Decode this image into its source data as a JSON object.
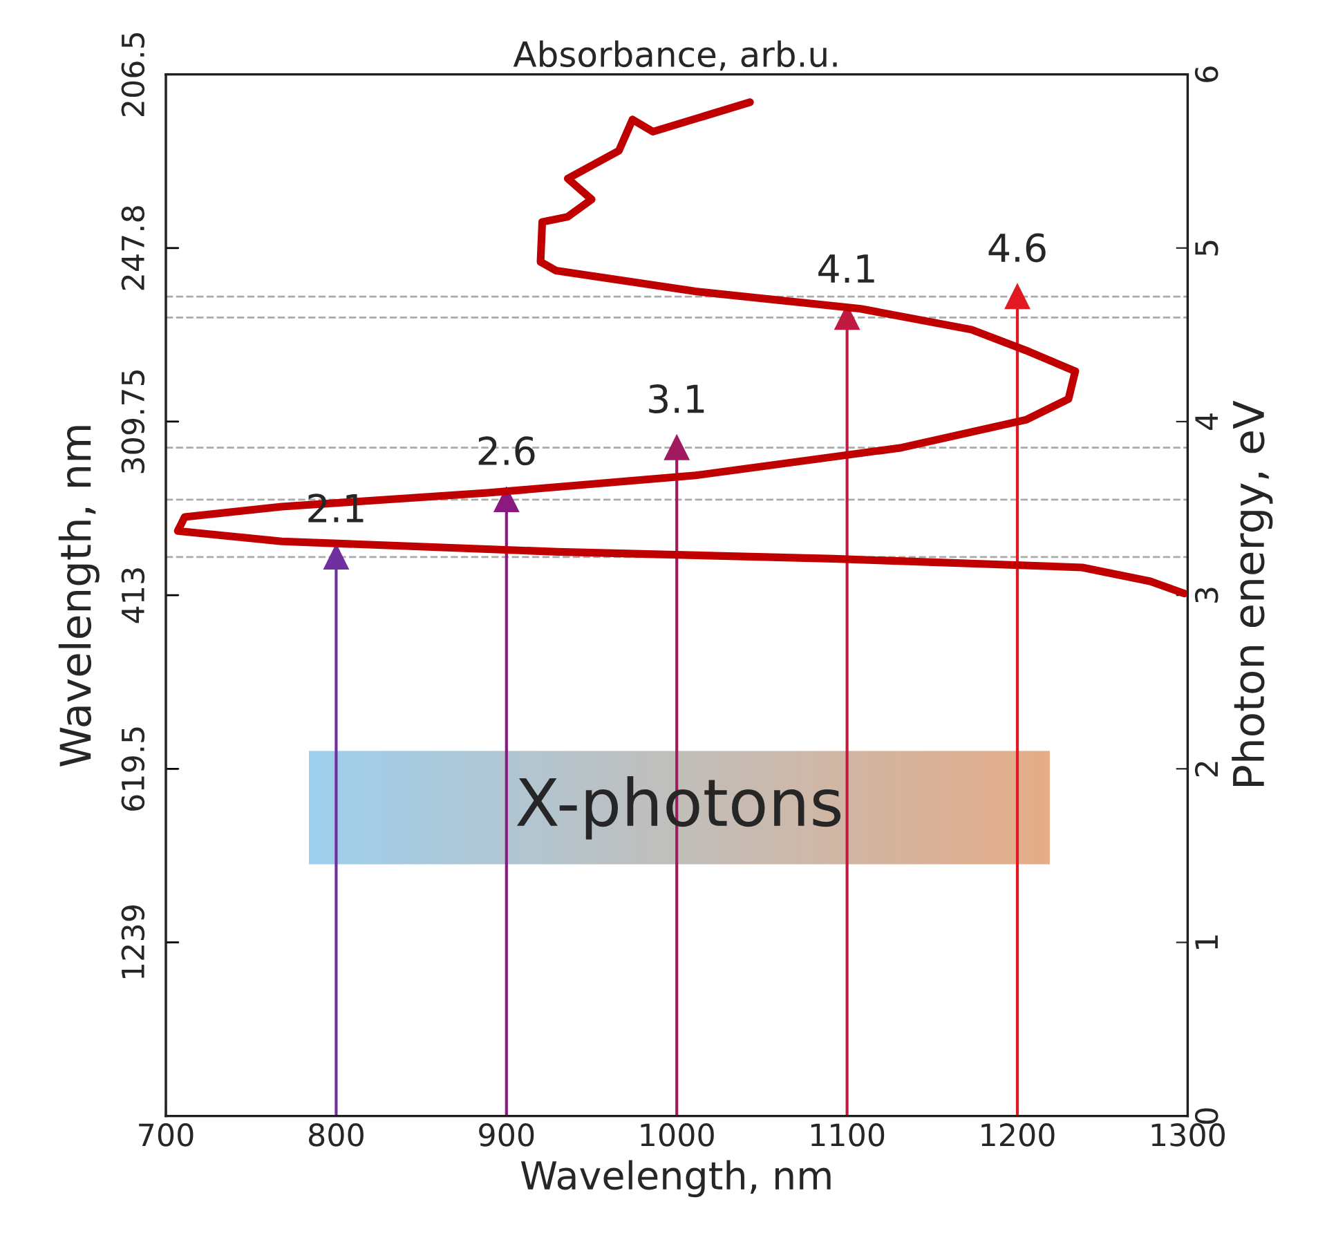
{
  "chart_data": {
    "type": "line",
    "xlabel": "Wavelength, nm",
    "ylabel": "Photon energy, eV",
    "y2label": "Wavelength, nm",
    "x2label": "Absorbance, arb.u.",
    "xlim": [
      700,
      1300
    ],
    "xticks": [
      700,
      800,
      900,
      1000,
      1100,
      1200,
      1300
    ],
    "ylim": [
      0,
      6
    ],
    "yticks": [
      0,
      1,
      2,
      3,
      4,
      5,
      6
    ],
    "grid": false,
    "legend": false,
    "bands": [
      {
        "axis": "y",
        "from": 1.45,
        "to": 2.1,
        "label": "X-photons"
      }
    ],
    "series": [
      {
        "color": "#c00000",
        "marker": "none",
        "x": [
          1043,
          986,
          974,
          966,
          936,
          950,
          936,
          921,
          920,
          929,
          1011,
          1108,
          1173,
          1205,
          1234,
          1230,
          1205,
          1132,
          1011,
          889,
          768,
          711,
          707,
          768,
          930,
          1092,
          1238,
          1278,
          1298
        ],
        "values": [
          5.84,
          5.67,
          5.74,
          5.56,
          5.4,
          5.28,
          5.18,
          5.15,
          4.92,
          4.87,
          4.75,
          4.65,
          4.53,
          4.41,
          4.29,
          4.13,
          4.01,
          3.85,
          3.69,
          3.59,
          3.51,
          3.45,
          3.37,
          3.31,
          3.25,
          3.21,
          3.16,
          3.08,
          3.01
        ]
      },
      {
        "color": "#7030a0",
        "marker": "triangle",
        "x": [
          800,
          800
        ],
        "values": [
          0,
          3.22
        ]
      },
      {
        "color": "#8a1a80",
        "marker": "triangle",
        "x": [
          900,
          900
        ],
        "values": [
          0,
          3.55
        ]
      },
      {
        "color": "#a01a60",
        "marker": "triangle",
        "x": [
          1000,
          1000
        ],
        "values": [
          0,
          3.85
        ]
      },
      {
        "color": "#c01a40",
        "marker": "triangle",
        "x": [
          1100,
          1100
        ],
        "values": [
          0,
          4.6
        ]
      },
      {
        "color": "#e01a20",
        "marker": "triangle",
        "x": [
          1200,
          1200
        ],
        "values": [
          0,
          4.72
        ]
      }
    ],
    "ref_lines": [
      {
        "axis": "y",
        "value": 3.22,
        "color": "#aaaaaa",
        "line_style": "dashed"
      },
      {
        "axis": "y",
        "value": 3.55,
        "color": "#aaaaaa",
        "line_style": "dashed"
      },
      {
        "axis": "y",
        "value": 3.85,
        "color": "#aaaaaa",
        "line_style": "dashed"
      },
      {
        "axis": "y",
        "value": 4.6,
        "color": "#aaaaaa",
        "line_style": "dashed"
      },
      {
        "axis": "y",
        "value": 4.72,
        "color": "#aaaaaa",
        "line_style": "dashed"
      }
    ],
    "annotations": [
      {
        "text": "2.1",
        "x": 800,
        "y": 3.22
      },
      {
        "text": "2.6",
        "x": 900,
        "y": 3.55
      },
      {
        "text": "3.1",
        "x": 1000,
        "y": 3.85
      },
      {
        "text": "4.1",
        "x": 1100,
        "y": 4.6
      },
      {
        "text": "4.6",
        "x": 1200,
        "y": 4.72
      },
      "1239",
      "619.5",
      "413",
      "309.75",
      "247.8",
      "206.5"
    ]
  }
}
